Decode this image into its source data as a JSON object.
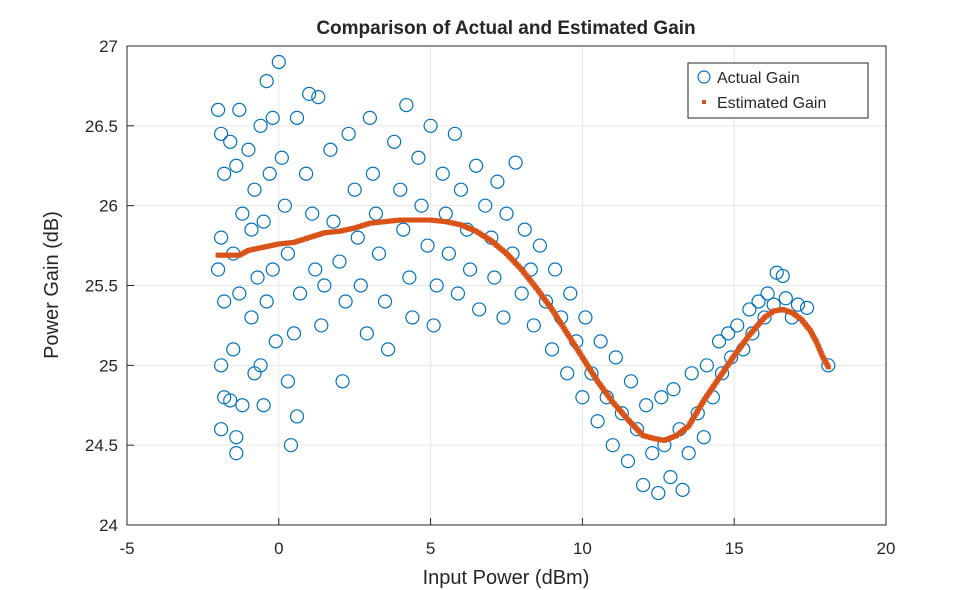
{
  "chart_data": {
    "type": "scatter",
    "title": "Comparison of Actual and Estimated Gain",
    "xlabel": "Input Power (dBm)",
    "ylabel": "Power Gain (dB)",
    "xlim": [
      -5,
      20
    ],
    "ylim": [
      24,
      27
    ],
    "xticks": [
      "-5",
      "0",
      "5",
      "10",
      "15",
      "20"
    ],
    "yticks": [
      "24",
      "24.5",
      "25",
      "25.5",
      "26",
      "26.5",
      "27"
    ],
    "grid": true,
    "legend": {
      "placement": "top-right",
      "entries": [
        "Actual Gain",
        "Estimated Gain"
      ]
    },
    "colors": {
      "actual": "#0072BD",
      "estimated": "#D95319"
    },
    "series": [
      {
        "name": "Actual Gain",
        "marker": "circle",
        "points": [
          [
            -2,
            26.6
          ],
          [
            -1.9,
            26.45
          ],
          [
            -1.8,
            26.2
          ],
          [
            -1.9,
            25.8
          ],
          [
            -2,
            25.6
          ],
          [
            -1.8,
            25.4
          ],
          [
            -1.9,
            25.0
          ],
          [
            -1.8,
            24.8
          ],
          [
            -1.9,
            24.6
          ],
          [
            -1.4,
            24.45
          ],
          [
            -1.4,
            24.55
          ],
          [
            -1.6,
            24.78
          ],
          [
            -1.2,
            24.75
          ],
          [
            -1.5,
            25.1
          ],
          [
            -1.3,
            25.45
          ],
          [
            -1.5,
            25.7
          ],
          [
            -1.2,
            25.95
          ],
          [
            -1.4,
            26.25
          ],
          [
            -1.3,
            26.6
          ],
          [
            -1.6,
            26.4
          ],
          [
            -1,
            26.35
          ],
          [
            -0.8,
            26.1
          ],
          [
            -0.9,
            25.85
          ],
          [
            -0.7,
            25.55
          ],
          [
            -0.9,
            25.3
          ],
          [
            -0.6,
            25.0
          ],
          [
            -0.8,
            24.95
          ],
          [
            -0.5,
            24.75
          ],
          [
            -0.6,
            26.5
          ],
          [
            -0.4,
            26.78
          ],
          [
            -0.2,
            26.55
          ],
          [
            -0.3,
            26.2
          ],
          [
            -0.5,
            25.9
          ],
          [
            -0.2,
            25.6
          ],
          [
            -0.4,
            25.4
          ],
          [
            -0.1,
            25.15
          ],
          [
            0.1,
            26.3
          ],
          [
            0.0,
            26.9
          ],
          [
            0.2,
            26.0
          ],
          [
            0.3,
            25.7
          ],
          [
            0.3,
            24.9
          ],
          [
            0.4,
            24.5
          ],
          [
            0.6,
            24.68
          ],
          [
            0.5,
            25.2
          ],
          [
            0.7,
            25.45
          ],
          [
            0.6,
            26.55
          ],
          [
            0.9,
            26.2
          ],
          [
            1.0,
            26.7
          ],
          [
            1.3,
            26.68
          ],
          [
            1.1,
            25.95
          ],
          [
            1.2,
            25.6
          ],
          [
            1.4,
            25.25
          ],
          [
            1.5,
            25.5
          ],
          [
            1.7,
            26.35
          ],
          [
            1.8,
            25.9
          ],
          [
            2.0,
            25.65
          ],
          [
            2.1,
            24.9
          ],
          [
            2.2,
            25.4
          ],
          [
            2.3,
            26.45
          ],
          [
            2.5,
            26.1
          ],
          [
            2.6,
            25.8
          ],
          [
            2.7,
            25.5
          ],
          [
            2.9,
            25.2
          ],
          [
            3.0,
            26.55
          ],
          [
            3.1,
            26.2
          ],
          [
            3.2,
            25.95
          ],
          [
            3.3,
            25.7
          ],
          [
            3.5,
            25.4
          ],
          [
            3.6,
            25.1
          ],
          [
            3.8,
            26.4
          ],
          [
            4.0,
            26.1
          ],
          [
            4.1,
            25.85
          ],
          [
            4.2,
            26.63
          ],
          [
            4.3,
            25.55
          ],
          [
            4.4,
            25.3
          ],
          [
            4.6,
            26.3
          ],
          [
            4.7,
            26.0
          ],
          [
            4.9,
            25.75
          ],
          [
            5.0,
            26.5
          ],
          [
            5.1,
            25.25
          ],
          [
            5.2,
            25.5
          ],
          [
            5.4,
            26.2
          ],
          [
            5.5,
            25.95
          ],
          [
            5.6,
            25.7
          ],
          [
            5.8,
            26.45
          ],
          [
            5.9,
            25.45
          ],
          [
            6.0,
            26.1
          ],
          [
            6.2,
            25.85
          ],
          [
            6.3,
            25.6
          ],
          [
            6.5,
            26.25
          ],
          [
            6.6,
            25.35
          ],
          [
            6.8,
            26.0
          ],
          [
            7.0,
            25.8
          ],
          [
            7.1,
            25.55
          ],
          [
            7.2,
            26.15
          ],
          [
            7.4,
            25.3
          ],
          [
            7.5,
            25.95
          ],
          [
            7.7,
            25.7
          ],
          [
            7.8,
            26.27
          ],
          [
            8.0,
            25.45
          ],
          [
            8.1,
            25.85
          ],
          [
            8.3,
            25.6
          ],
          [
            8.4,
            25.25
          ],
          [
            8.6,
            25.75
          ],
          [
            8.8,
            25.4
          ],
          [
            9.0,
            25.1
          ],
          [
            9.1,
            25.6
          ],
          [
            9.3,
            25.3
          ],
          [
            9.5,
            24.95
          ],
          [
            9.6,
            25.45
          ],
          [
            9.8,
            25.15
          ],
          [
            10.0,
            24.8
          ],
          [
            10.1,
            25.3
          ],
          [
            10.3,
            24.95
          ],
          [
            10.5,
            24.65
          ],
          [
            10.6,
            25.15
          ],
          [
            10.8,
            24.8
          ],
          [
            11.0,
            24.5
          ],
          [
            11.1,
            25.05
          ],
          [
            11.3,
            24.7
          ],
          [
            11.5,
            24.4
          ],
          [
            11.6,
            24.9
          ],
          [
            11.8,
            24.6
          ],
          [
            12.0,
            24.25
          ],
          [
            12.1,
            24.75
          ],
          [
            12.3,
            24.45
          ],
          [
            12.5,
            24.2
          ],
          [
            12.6,
            24.8
          ],
          [
            12.7,
            24.5
          ],
          [
            12.9,
            24.3
          ],
          [
            13.0,
            24.85
          ],
          [
            13.2,
            24.6
          ],
          [
            13.3,
            24.22
          ],
          [
            13.5,
            24.45
          ],
          [
            13.6,
            24.95
          ],
          [
            13.8,
            24.7
          ],
          [
            14.0,
            24.55
          ],
          [
            14.1,
            25.0
          ],
          [
            14.3,
            24.8
          ],
          [
            14.5,
            25.15
          ],
          [
            14.6,
            24.95
          ],
          [
            14.8,
            25.2
          ],
          [
            14.9,
            25.05
          ],
          [
            15.1,
            25.25
          ],
          [
            15.3,
            25.1
          ],
          [
            15.5,
            25.35
          ],
          [
            15.6,
            25.2
          ],
          [
            15.8,
            25.4
          ],
          [
            16.0,
            25.3
          ],
          [
            16.1,
            25.45
          ],
          [
            16.3,
            25.38
          ],
          [
            16.4,
            25.58
          ],
          [
            16.6,
            25.56
          ],
          [
            16.7,
            25.42
          ],
          [
            16.9,
            25.3
          ],
          [
            17.1,
            25.38
          ],
          [
            17.4,
            25.36
          ],
          [
            18.1,
            25.0
          ]
        ]
      },
      {
        "name": "Estimated Gain",
        "marker": "square",
        "points": [
          [
            -2,
            25.69
          ],
          [
            -1.3,
            25.69
          ],
          [
            -1,
            25.72
          ],
          [
            -0.5,
            25.74
          ],
          [
            0,
            25.76
          ],
          [
            0.5,
            25.77
          ],
          [
            1,
            25.8
          ],
          [
            1.5,
            25.83
          ],
          [
            2,
            25.84
          ],
          [
            2.5,
            25.86
          ],
          [
            3,
            25.89
          ],
          [
            3.5,
            25.9
          ],
          [
            4,
            25.91
          ],
          [
            4.5,
            25.91
          ],
          [
            5,
            25.91
          ],
          [
            5.5,
            25.9
          ],
          [
            6,
            25.88
          ],
          [
            6.5,
            25.84
          ],
          [
            7,
            25.78
          ],
          [
            7.5,
            25.7
          ],
          [
            8,
            25.6
          ],
          [
            8.5,
            25.48
          ],
          [
            9,
            25.35
          ],
          [
            9.5,
            25.2
          ],
          [
            10,
            25.05
          ],
          [
            10.5,
            24.9
          ],
          [
            11,
            24.77
          ],
          [
            11.5,
            24.66
          ],
          [
            12,
            24.56
          ],
          [
            12.4,
            24.54
          ],
          [
            12.7,
            24.53
          ],
          [
            13.1,
            24.56
          ],
          [
            13.5,
            24.62
          ],
          [
            14,
            24.78
          ],
          [
            14.5,
            24.92
          ],
          [
            15,
            25.06
          ],
          [
            15.5,
            25.19
          ],
          [
            16,
            25.3
          ],
          [
            16.3,
            25.34
          ],
          [
            16.6,
            25.35
          ],
          [
            16.9,
            25.33
          ],
          [
            17.2,
            25.29
          ],
          [
            17.5,
            25.22
          ],
          [
            17.7,
            25.15
          ],
          [
            17.9,
            25.06
          ],
          [
            18.1,
            24.99
          ]
        ]
      }
    ]
  }
}
